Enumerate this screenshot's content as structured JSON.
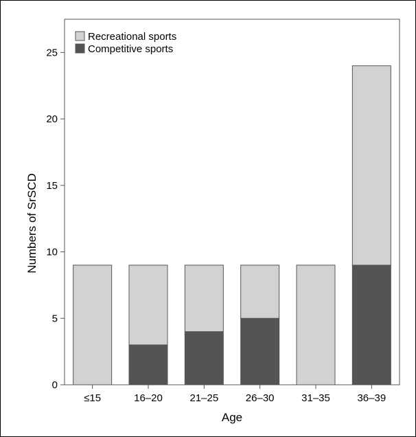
{
  "chart_data": {
    "type": "bar",
    "stacked": true,
    "categories": [
      "≤15",
      "16–20",
      "21–25",
      "26–30",
      "31–35",
      "36–39"
    ],
    "series": [
      {
        "name": "Competitive sports",
        "values": [
          0,
          3,
          4,
          5,
          0,
          9
        ],
        "color": "#545454"
      },
      {
        "name": "Recreational sports",
        "values": [
          9,
          6,
          5,
          4,
          9,
          15
        ],
        "color": "#d1d2d4"
      }
    ],
    "title": "",
    "xlabel": "Age",
    "ylabel": "Numbers of SrSCD",
    "ylim": [
      0,
      27.5
    ],
    "yticks": [
      0,
      5,
      10,
      15,
      20,
      25
    ],
    "grid": false,
    "legend": {
      "placement": "top-left",
      "entries": [
        {
          "label": "Recreational sports",
          "color": "#d1d2d4"
        },
        {
          "label": "Competitive sports",
          "color": "#545454"
        }
      ]
    }
  }
}
